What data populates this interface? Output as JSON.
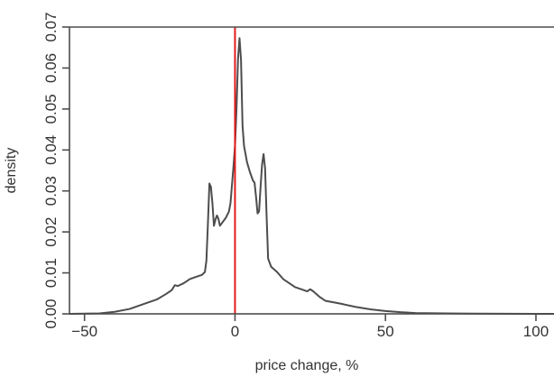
{
  "chart_data": {
    "type": "line",
    "title": "",
    "xlabel": "price change, %",
    "ylabel": "density",
    "xlim": [
      -55,
      106
    ],
    "ylim": [
      0,
      0.07
    ],
    "x_ticks": [
      -50,
      0,
      50,
      100
    ],
    "x_tick_labels": [
      "−50",
      "0",
      "50",
      "100"
    ],
    "y_ticks": [
      0.0,
      0.01,
      0.02,
      0.03,
      0.04,
      0.05,
      0.06,
      0.07
    ],
    "y_tick_labels": [
      "0.00",
      "0.01",
      "0.02",
      "0.03",
      "0.04",
      "0.05",
      "0.06",
      "0.07"
    ],
    "grid": false,
    "reference_lines": [
      {
        "type": "vertical",
        "x": 0,
        "color": "#e31a1c"
      },
      {
        "type": "horizontal",
        "y": 0,
        "color": "#bdbdbd"
      }
    ],
    "series": [
      {
        "color": "#4d4d4d",
        "points": [
          [
            -55,
            0.0
          ],
          [
            -45,
            0.0001
          ],
          [
            -40,
            0.0005
          ],
          [
            -35,
            0.0012
          ],
          [
            -30,
            0.0025
          ],
          [
            -26,
            0.0035
          ],
          [
            -23,
            0.0048
          ],
          [
            -21,
            0.0058
          ],
          [
            -20,
            0.007
          ],
          [
            -19,
            0.0068
          ],
          [
            -17,
            0.0075
          ],
          [
            -15,
            0.0085
          ],
          [
            -13,
            0.009
          ],
          [
            -11,
            0.0095
          ],
          [
            -10,
            0.0102
          ],
          [
            -9.5,
            0.013
          ],
          [
            -9,
            0.022
          ],
          [
            -8.5,
            0.0318
          ],
          [
            -8,
            0.031
          ],
          [
            -7.5,
            0.027
          ],
          [
            -7,
            0.0215
          ],
          [
            -6.5,
            0.023
          ],
          [
            -6,
            0.024
          ],
          [
            -5.5,
            0.0232
          ],
          [
            -5,
            0.0215
          ],
          [
            -4,
            0.0225
          ],
          [
            -3,
            0.0235
          ],
          [
            -2,
            0.025
          ],
          [
            -1.5,
            0.027
          ],
          [
            -1,
            0.0315
          ],
          [
            -0.5,
            0.036
          ],
          [
            0,
            0.041
          ],
          [
            0.5,
            0.05
          ],
          [
            1,
            0.0622
          ],
          [
            1.5,
            0.0673
          ],
          [
            2,
            0.062
          ],
          [
            2.5,
            0.046
          ],
          [
            3,
            0.041
          ],
          [
            4,
            0.037
          ],
          [
            5,
            0.0345
          ],
          [
            6,
            0.0325
          ],
          [
            6.5,
            0.032
          ],
          [
            7,
            0.0285
          ],
          [
            7.5,
            0.0245
          ],
          [
            8,
            0.025
          ],
          [
            8.5,
            0.031
          ],
          [
            9,
            0.0365
          ],
          [
            9.5,
            0.039
          ],
          [
            10,
            0.0355
          ],
          [
            10.5,
            0.024
          ],
          [
            11,
            0.0135
          ],
          [
            12,
            0.0115
          ],
          [
            14,
            0.0102
          ],
          [
            16,
            0.0085
          ],
          [
            18,
            0.0075
          ],
          [
            20,
            0.0065
          ],
          [
            22,
            0.006
          ],
          [
            24,
            0.0055
          ],
          [
            25,
            0.006
          ],
          [
            26,
            0.0055
          ],
          [
            28,
            0.0042
          ],
          [
            30,
            0.0032
          ],
          [
            35,
            0.0025
          ],
          [
            40,
            0.0017
          ],
          [
            45,
            0.0011
          ],
          [
            50,
            0.0007
          ],
          [
            55,
            0.0004
          ],
          [
            60,
            0.0002
          ],
          [
            70,
            0.0001
          ],
          [
            80,
            5e-05
          ],
          [
            100,
            0.0
          ],
          [
            106,
            0.0
          ]
        ]
      }
    ]
  }
}
